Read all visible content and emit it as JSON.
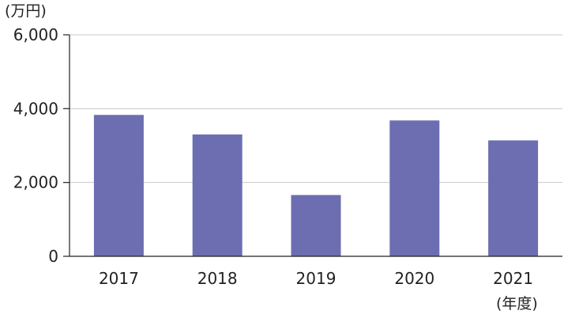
{
  "chart_data": {
    "type": "bar",
    "title": "",
    "ylabel": "(万円)",
    "xlabel": "(年度)",
    "categories": [
      "2017",
      "2018",
      "2019",
      "2020",
      "2021"
    ],
    "values": [
      3830,
      3300,
      1660,
      3680,
      3140
    ],
    "ylim": [
      0,
      6000
    ],
    "yticks": [
      0,
      2000,
      4000,
      6000
    ],
    "ytick_labels": [
      "0",
      "2,000",
      "4,000",
      "6,000"
    ],
    "grid": true,
    "legend": "none",
    "colors": {
      "bar": "#6c6eb1",
      "grid": "#c8c8c8",
      "axis": "#222222",
      "text": "#222222"
    }
  }
}
